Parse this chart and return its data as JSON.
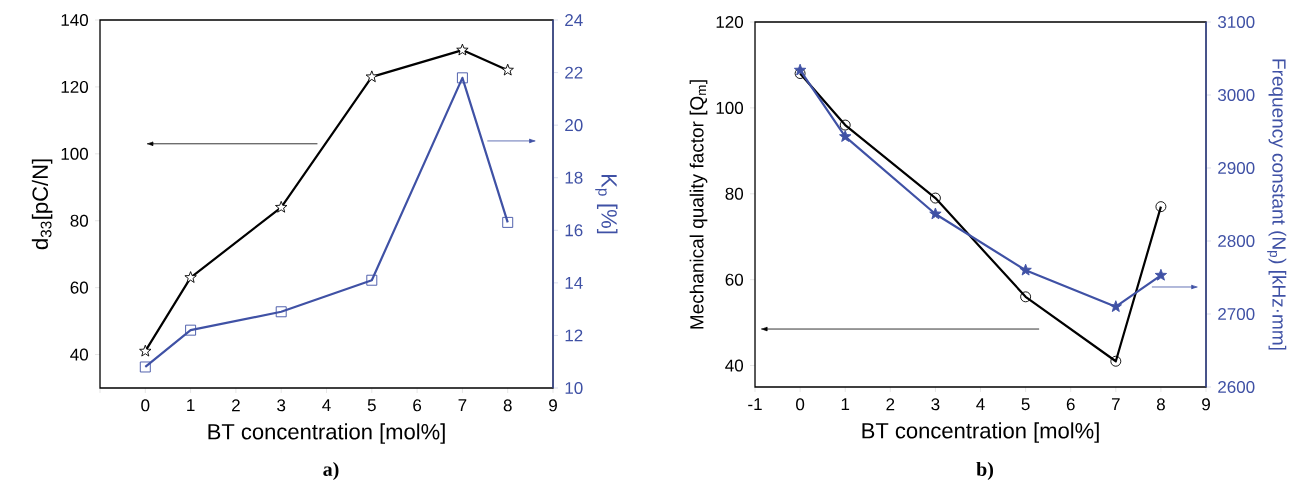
{
  "chart_data": [
    {
      "type": "line",
      "xlabel": "BT concentration [mol%]",
      "ylabel": "d$_{33}$[pC/N]",
      "y2label": "K$_{p}$ [%]",
      "annotations": [
        "a)"
      ],
      "xlim": [
        -1,
        9
      ],
      "xticks": [
        {
          "value": -1,
          "label": null
        },
        0,
        1,
        2,
        3,
        4,
        5,
        6,
        7,
        8,
        9
      ],
      "ylim": [
        30,
        140
      ],
      "yticks": [
        40,
        60,
        80,
        100,
        120,
        140
      ],
      "y2lim": [
        10,
        24
      ],
      "y2ticks": [
        10,
        12,
        14,
        16,
        18,
        20,
        22,
        24
      ],
      "x": [
        0,
        1,
        3,
        5,
        7,
        8
      ],
      "grid": false,
      "series": [
        {
          "color": "#000000",
          "axis": "y",
          "marker": "star",
          "values": [
            41,
            63,
            84,
            123,
            131,
            125
          ]
        },
        {
          "color": "#3f51a5",
          "axis": "y2",
          "marker": "square",
          "values": [
            10.8,
            12.2,
            12.9,
            14.1,
            21.8,
            16.3
          ]
        }
      ]
    },
    {
      "type": "line",
      "xlabel": "BT concentration [mol%]",
      "ylabel": "Mechanical quality factor [Q$_{m}$]",
      "y2label": "Frequency constant (N$_{p}$) [kHz·mm]",
      "annotations": [
        "b)"
      ],
      "xlim": [
        -1,
        9
      ],
      "xticks": [
        -1,
        0,
        1,
        2,
        3,
        4,
        5,
        6,
        7,
        8,
        9
      ],
      "ylim": [
        35,
        120
      ],
      "yticks": [
        40,
        60,
        80,
        100,
        120
      ],
      "y2lim": [
        2600,
        3100
      ],
      "y2ticks": [
        2600,
        2700,
        2800,
        2900,
        3000,
        3100
      ],
      "x": [
        0,
        1,
        3,
        5,
        7,
        8
      ],
      "grid": false,
      "series": [
        {
          "color": "#000000",
          "axis": "y",
          "marker": "circle",
          "values": [
            108,
            96,
            79,
            56,
            41,
            77
          ]
        },
        {
          "color": "#3f51a5",
          "axis": "y2",
          "marker": "star",
          "values": [
            3034,
            2943,
            2837,
            2760,
            2710,
            2753
          ]
        }
      ]
    }
  ]
}
